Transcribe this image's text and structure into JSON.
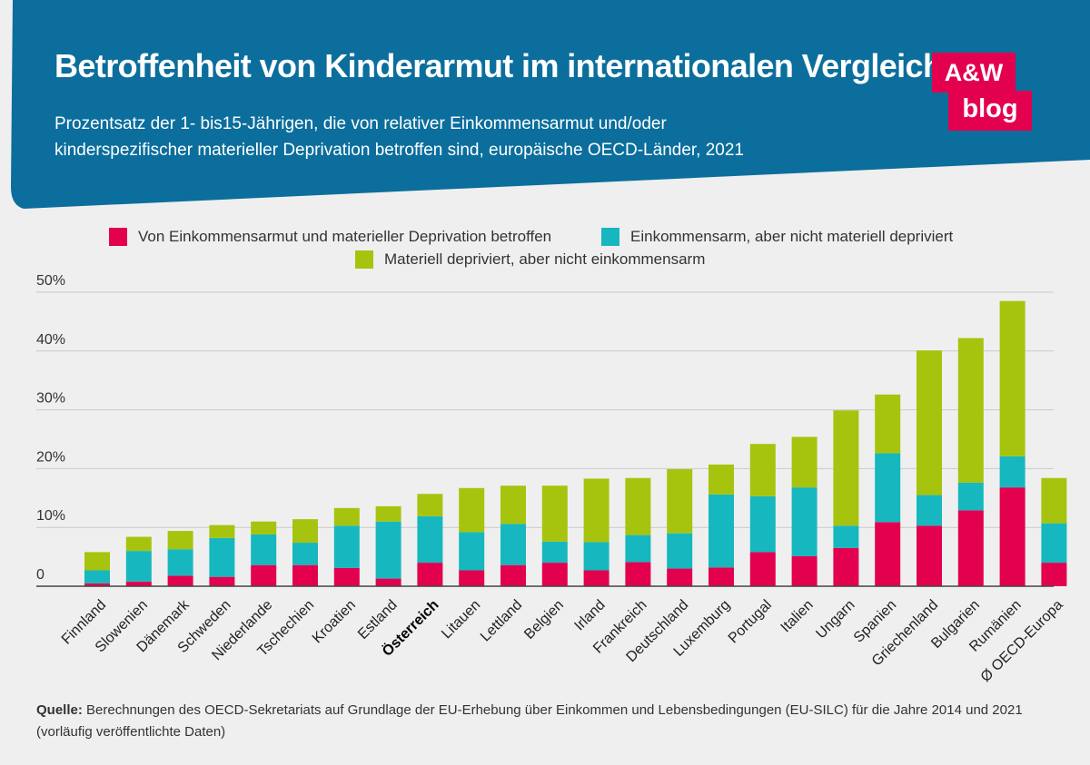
{
  "title": "Betroffenheit von Kinderarmut im internationalen Vergleich",
  "subtitle_line1": "Prozentsatz der 1- bis15-Jährigen, die von relativer Einkommensarmut und/oder",
  "subtitle_line2": "kinderspezifischer materieller Deprivation betroffen sind, europäische OECD-Länder, 2021",
  "logo": {
    "line1": "A&W",
    "line2": "blog"
  },
  "colors": {
    "header": "#0b6e9c",
    "red": "#e2004f",
    "teal": "#17b7bf",
    "green": "#a6c40d",
    "grid": "#c9c9c9",
    "axis": "#444444"
  },
  "source_label": "Quelle:",
  "source_text": "Berechnungen des OECD-Sekretariats auf Grundlage der EU-Erhebung über Einkommen und Lebensbedingungen (EU-SILC) für die Jahre 2014 und 2021 (vorläufig veröffentlichte Daten)",
  "chart_data": {
    "type": "bar",
    "stacked": true,
    "title": "Betroffenheit von Kinderarmut im internationalen Vergleich",
    "ylim": [
      0,
      50
    ],
    "yticks": [
      0,
      10,
      20,
      30,
      40,
      50
    ],
    "ytick_labels": [
      "0",
      "10%",
      "20%",
      "30%",
      "40%",
      "50%"
    ],
    "grid": true,
    "legend_position": "top-center",
    "highlight_category": "Österreich",
    "categories": [
      "Finnland",
      "Slowenien",
      "Dänemark",
      "Schweden",
      "Niederlande",
      "Tschechien",
      "Kroatien",
      "Estland",
      "Österreich",
      "Litauen",
      "Lettland",
      "Belgien",
      "Irland",
      "Frankreich",
      "Deutschland",
      "Luxemburg",
      "Portugal",
      "Italien",
      "Ungarn",
      "Spanien",
      "Griechenland",
      "Bulgarien",
      "Rumänien",
      "Ø OECD-Europa"
    ],
    "series": [
      {
        "name": "Von Einkommensarmut und materieller Deprivation betroffen",
        "color": "#e2004f",
        "values": [
          0.5,
          0.8,
          1.8,
          1.6,
          3.6,
          3.6,
          3.1,
          1.3,
          4.0,
          2.7,
          3.6,
          4.0,
          2.7,
          4.1,
          3.0,
          3.2,
          5.8,
          5.1,
          6.5,
          10.9,
          10.3,
          12.9,
          16.8,
          4.0
        ]
      },
      {
        "name": "Einkommensarm, aber nicht materiell depriviert",
        "color": "#17b7bf",
        "values": [
          2.2,
          5.2,
          4.5,
          6.6,
          5.2,
          3.8,
          7.2,
          9.7,
          7.9,
          6.5,
          7.0,
          3.6,
          4.8,
          4.6,
          6.0,
          12.4,
          9.5,
          11.7,
          3.8,
          11.7,
          5.2,
          4.7,
          5.3,
          6.7
        ]
      },
      {
        "name": "Materiell depriviert, aber nicht einkommensarm",
        "color": "#a6c40d",
        "values": [
          3.1,
          2.4,
          3.1,
          2.2,
          2.2,
          4.0,
          3.0,
          2.6,
          3.8,
          7.5,
          6.5,
          9.5,
          10.8,
          9.7,
          10.9,
          5.1,
          8.9,
          8.6,
          19.6,
          10.0,
          24.6,
          24.6,
          26.4,
          7.7
        ]
      }
    ]
  }
}
